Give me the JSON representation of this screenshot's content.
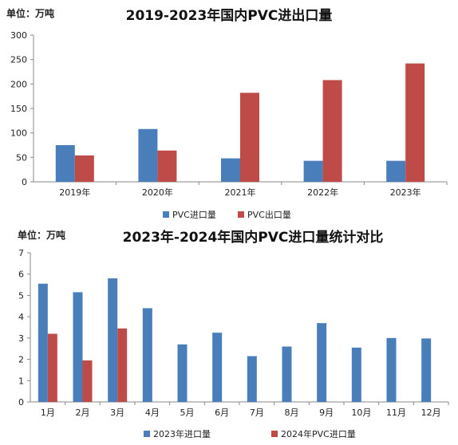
{
  "chart_data": [
    {
      "type": "bar",
      "title": "2019-2023年国内PVC进出口量",
      "unit_label": "单位：万吨",
      "categories": [
        "2019年",
        "2020年",
        "2021年",
        "2022年",
        "2023年"
      ],
      "series": [
        {
          "name": "PVC进口量",
          "color": "#4a7ebb",
          "values": [
            75,
            108,
            48,
            43,
            43
          ]
        },
        {
          "name": "PVC出口量",
          "color": "#be4b48",
          "values": [
            54,
            64,
            182,
            208,
            242
          ]
        }
      ],
      "ylim": [
        0,
        300
      ],
      "yticks": [
        0,
        50,
        100,
        150,
        200,
        250,
        300
      ],
      "legend_position": "bottom"
    },
    {
      "type": "bar",
      "title": "2023年-2024年国内PVC进口量统计对比",
      "unit_label": "单位：万吨",
      "categories": [
        "1月",
        "2月",
        "3月",
        "4月",
        "5月",
        "6月",
        "7月",
        "8月",
        "9月",
        "10月",
        "11月",
        "12月"
      ],
      "series": [
        {
          "name": "2023年进口量",
          "color": "#4a7ebb",
          "values": [
            5.55,
            5.15,
            5.8,
            4.4,
            2.7,
            3.25,
            2.15,
            2.6,
            3.7,
            2.55,
            3.0,
            2.98
          ]
        },
        {
          "name": "2024年PVC进口量",
          "color": "#be4b48",
          "values": [
            3.2,
            1.95,
            3.45,
            null,
            null,
            null,
            null,
            null,
            null,
            null,
            null,
            null
          ]
        }
      ],
      "ylim": [
        0,
        7
      ],
      "yticks": [
        0,
        1,
        2,
        3,
        4,
        5,
        6,
        7
      ],
      "legend_position": "bottom"
    }
  ]
}
